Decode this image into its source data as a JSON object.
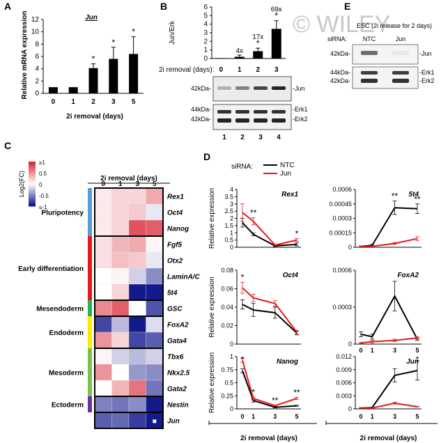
{
  "panel_labels": {
    "a": "A",
    "b": "B",
    "c": "C",
    "d": "D",
    "e": "E"
  },
  "watermark": "© WILEY",
  "chart_data": [
    {
      "id": "A",
      "type": "bar",
      "title": "Jun",
      "ylabel": "Relative mRNA expression",
      "xlabel": "2i removal (days)",
      "categories": [
        "0",
        "1",
        "2",
        "3",
        "5"
      ],
      "values": [
        1,
        1,
        4.1,
        5.6,
        6.4
      ],
      "errors": [
        0,
        0,
        0.7,
        1.9,
        2.8
      ],
      "significance": [
        "",
        "",
        "*",
        "*",
        "*"
      ],
      "ylim": [
        0,
        12
      ],
      "yticks": [
        "0",
        "2",
        "4",
        "6",
        "8",
        "10",
        "12"
      ]
    },
    {
      "id": "B",
      "type": "bar",
      "ylabel": "Jun/Erk",
      "xlabel": "2i removal (days):",
      "categories": [
        "0",
        "1",
        "2",
        "3"
      ],
      "values": [
        0.05,
        0.2,
        0.85,
        3.45
      ],
      "errors": [
        0,
        0.2,
        0.35,
        0.95
      ],
      "fold_labels": [
        "",
        "4x",
        "17x",
        "69x"
      ],
      "significance": [
        "",
        "",
        "*",
        "*"
      ],
      "ylim": [
        0,
        6
      ],
      "yticks": [
        "0",
        "1",
        "2",
        "3",
        "4",
        "5",
        "6"
      ],
      "blot": {
        "markers": [
          "42kDa-",
          "44kDa-",
          "42kDa-"
        ],
        "bands": [
          "-Jun",
          "-Erk1",
          "-Erk2"
        ],
        "lanes": [
          "1",
          "2",
          "3",
          "4"
        ]
      }
    },
    {
      "id": "E",
      "type": "table",
      "title": "ESC (2i release for 2 days)",
      "sirna_label": "siRNA:",
      "lanes": [
        "NTC",
        "Jun"
      ],
      "markers": [
        "42kDa-",
        "44kDa-",
        "42kDa-"
      ],
      "bands": [
        "-Jun",
        "-Erk1",
        "-Erk2"
      ]
    },
    {
      "id": "C",
      "type": "heatmap",
      "title": "2i removal (days)",
      "columns": [
        "0",
        "1",
        "3",
        "5"
      ],
      "legend_title": "Log2(FC)",
      "legend_ticks": [
        "≥1",
        "0.5",
        "0",
        "-0.5",
        "≤-1"
      ],
      "rows": [
        "Rex1",
        "Oct4",
        "Nanog",
        "Fgf5",
        "Otx2",
        "LaminA/C",
        "5t4",
        "GSC",
        "FoxA2",
        "Gata4",
        "Tbx6",
        "Nkx2.5",
        "Gata2",
        "Nestin",
        "Jun"
      ],
      "values": [
        [
          0.1,
          0.2,
          0.2,
          0.4
        ],
        [
          0.1,
          0.2,
          0.25,
          -0.1
        ],
        [
          0.1,
          0.2,
          0.8,
          0.75
        ],
        [
          0.15,
          0.35,
          0.4,
          0.05
        ],
        [
          0.15,
          0.3,
          0.25,
          -0.1
        ],
        [
          0.0,
          0.05,
          -0.2,
          -0.5
        ],
        [
          0.0,
          0.2,
          -1,
          -1
        ],
        [
          0.55,
          0.75,
          0.0,
          -0.75
        ],
        [
          -0.8,
          -0.3,
          -1,
          -0.15
        ],
        [
          0.5,
          0.2,
          -0.8,
          -0.7
        ],
        [
          0.05,
          -0.2,
          -0.3,
          -0.2
        ],
        [
          0.5,
          0.0,
          -0.45,
          -0.5
        ],
        [
          0.0,
          0.35,
          0.65,
          -0.6
        ],
        [
          -0.55,
          -0.6,
          -0.5,
          -1
        ],
        [
          -0.7,
          -0.65,
          -0.85,
          -1
        ]
      ],
      "groups": [
        {
          "name": "Pluripotency",
          "color": "#5b9bd5",
          "rows": 3
        },
        {
          "name": "Early differentiation",
          "color": "#e31a1c",
          "rows": 4
        },
        {
          "name": "Mesendoderm",
          "color": "#2cae5e",
          "rows": 1
        },
        {
          "name": "Endoderm",
          "color": "#ffe800",
          "rows": 2
        },
        {
          "name": "Mesoderm",
          "color": "#7fbf4e",
          "rows": 3
        },
        {
          "name": "Ectoderm",
          "color": "#7030a0",
          "rows": 1
        }
      ]
    },
    {
      "id": "D",
      "type": "line",
      "legend_title": "siRNA:",
      "xlabel": "2i removal (days)",
      "ylabel": "Relative expression",
      "x": [
        "0",
        "1",
        "3",
        "5"
      ],
      "series_names": [
        "NTC",
        "Jun"
      ],
      "series_colors": [
        "#000000",
        "#e41a1c"
      ],
      "subplots": [
        {
          "gene": "Rex1",
          "ylim": [
            0,
            4
          ],
          "yticks": [
            "0",
            "0.5",
            "1",
            "1.5",
            "2",
            "2.5",
            "3",
            "3.5",
            "4"
          ],
          "series": [
            {
              "name": "NTC",
              "values": [
                1.7,
                0.9,
                0.1,
                0.2
              ],
              "errors": [
                0.3,
                0.1,
                0.05,
                0.1
              ]
            },
            {
              "name": "Jun",
              "values": [
                2.4,
                1.8,
                0.15,
                0.5
              ],
              "errors": [
                0.6,
                0.25,
                0.05,
                0.1
              ]
            }
          ],
          "stars": [
            "",
            "**",
            "",
            "*"
          ]
        },
        {
          "gene": "5t4",
          "ylim": [
            0,
            0.0006
          ],
          "yticks": [
            "0",
            "0.00015",
            "0.0003",
            "0.00045",
            "0.0006"
          ],
          "series": [
            {
              "name": "NTC",
              "values": [
                1e-05,
                2e-05,
                0.00041,
                0.0004
              ],
              "errors": [
                5e-06,
                1e-05,
                7e-05,
                5e-05
              ]
            },
            {
              "name": "Jun",
              "values": [
                1e-05,
                1e-05,
                4e-05,
                9e-05
              ],
              "errors": [
                5e-06,
                5e-06,
                1e-05,
                2e-05
              ]
            }
          ],
          "stars": [
            "",
            "",
            "**",
            "**"
          ]
        },
        {
          "gene": "Oct4",
          "ylim": [
            0,
            0.08
          ],
          "yticks": [
            "0",
            "0.02",
            "0.04",
            "0.06",
            "0.08"
          ],
          "series": [
            {
              "name": "NTC",
              "values": [
                0.043,
                0.037,
                0.034,
                0.012
              ],
              "errors": [
                0.005,
                0.007,
                0.006,
                0.002
              ]
            },
            {
              "name": "Jun",
              "values": [
                0.061,
                0.05,
                0.044,
                0.013
              ],
              "errors": [
                0.006,
                0.004,
                0.003,
                0.002
              ]
            }
          ],
          "stars": [
            "*",
            "",
            "",
            ""
          ]
        },
        {
          "gene": "FoxA2",
          "ylim": [
            0,
            0.0006
          ],
          "yticks": [
            "0",
            "0.0003",
            "0.0006"
          ],
          "series": [
            {
              "name": "NTC",
              "values": [
                8e-05,
                6e-05,
                0.00039,
                4e-05
              ],
              "errors": [
                2e-05,
                2e-05,
                0.00012,
                1e-05
              ]
            },
            {
              "name": "Jun",
              "values": [
                1e-05,
                2e-05,
                3e-05,
                5e-05
              ],
              "errors": [
                5e-06,
                1e-05,
                1e-05,
                1e-05
              ]
            }
          ],
          "stars": [
            "",
            "",
            "",
            ""
          ]
        },
        {
          "gene": "Nanog",
          "ylim": [
            0,
            1
          ],
          "yticks": [
            "0",
            "0.25",
            "0.5",
            "0.75",
            "1"
          ],
          "series": [
            {
              "name": "NTC",
              "values": [
                0.73,
                0.16,
                0.03,
                0.06
              ],
              "errors": [
                0.04,
                0.03,
                0.01,
                0.01
              ]
            },
            {
              "name": "Jun",
              "values": [
                0.93,
                0.2,
                0.06,
                0.2
              ],
              "errors": [
                0.04,
                0.03,
                0.01,
                0.02
              ]
            }
          ],
          "stars": [
            "*",
            "*",
            "**",
            "**"
          ]
        },
        {
          "gene": "Jun",
          "ylim": [
            0,
            0.012
          ],
          "yticks": [
            "0",
            "0.003",
            "0.006",
            "0.009",
            "0.012"
          ],
          "series": [
            {
              "name": "NTC",
              "values": [
                0.0002,
                0.0003,
                0.0077,
                0.0088
              ],
              "errors": [
                0.0001,
                0.0001,
                0.0015,
                0.0022
              ]
            },
            {
              "name": "Jun",
              "values": [
                0.0002,
                0.0002,
                0.0013,
                0.0005
              ],
              "errors": [
                0.0001,
                0.0001,
                0.0002,
                0.0001
              ]
            }
          ],
          "stars": [
            "",
            "",
            "",
            "*"
          ]
        }
      ]
    }
  ]
}
